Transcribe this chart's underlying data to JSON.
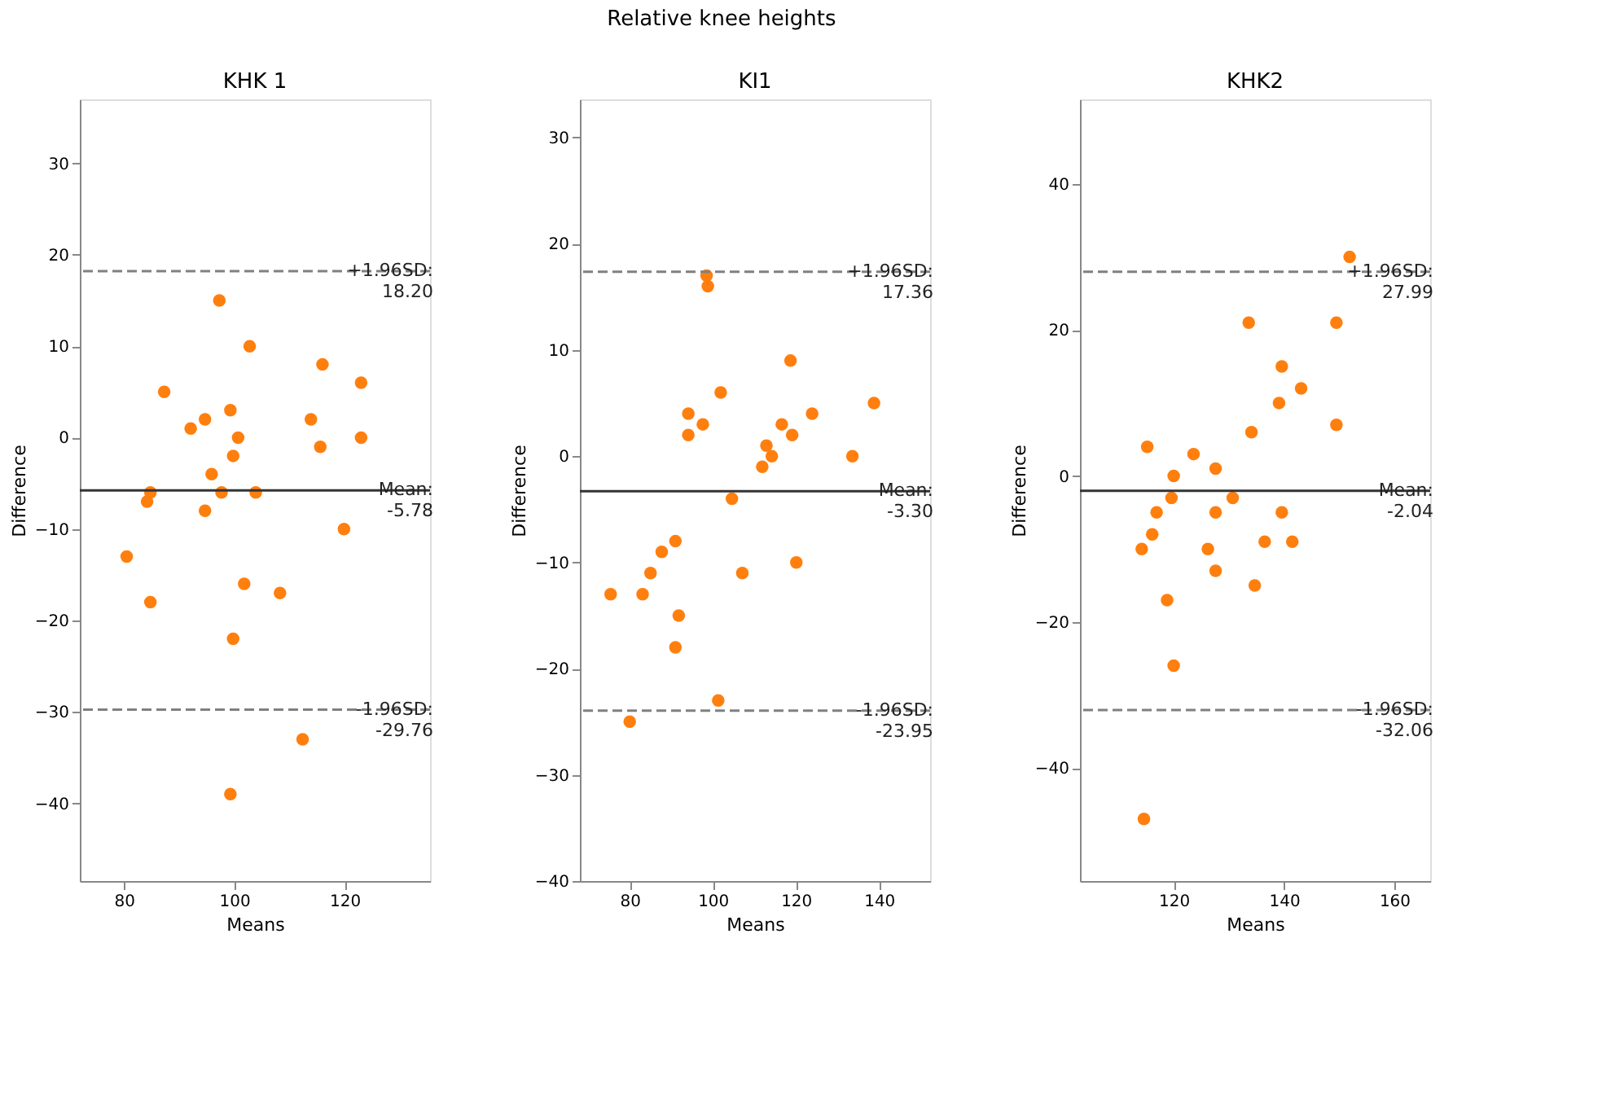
{
  "chart_data": [
    {
      "type": "scatter",
      "title": "KHK 1",
      "xlabel": "Means",
      "ylabel": "Difference",
      "annotations": [
        "Relative knee heights"
      ],
      "color": "#ff7f0e",
      "marker": "circle",
      "grid": false,
      "x": [
        87.3,
        80.5,
        84.2,
        84.8,
        84.8,
        92.1,
        94.7,
        94.7,
        95.9,
        97.3,
        97.7,
        99.3,
        99.8,
        100.7,
        99.8,
        99.3,
        101.8,
        102.8,
        103.9,
        108.3,
        112.4,
        113.9,
        116.0,
        115.6,
        119.9,
        123.0,
        123.0
      ],
      "values": [
        5,
        -13,
        -7,
        -6,
        -18,
        1,
        2,
        -8,
        -4,
        15,
        -6,
        3,
        -2,
        0,
        -22,
        -39,
        -16,
        10,
        -6,
        -17,
        -33,
        2,
        8,
        -1,
        -10,
        6,
        0
      ],
      "xlim": [
        72,
        135.5
      ],
      "ylim": [
        -48.5,
        37
      ],
      "xticks": [
        80,
        100,
        120
      ],
      "yticks": [
        -40,
        -30,
        -20,
        -10,
        0,
        10,
        20,
        30
      ],
      "ref_lines": [
        {
          "axis": "y",
          "value": 18.2,
          "label": "+1.96SD:\n18.20",
          "color": "#808080",
          "line_style": "dashed"
        },
        {
          "axis": "y",
          "value": -5.78,
          "label": "Mean:\n-5.78",
          "color": "#333333",
          "line_style": "solid"
        },
        {
          "axis": "y",
          "value": -29.76,
          "label": "-1.96SD:\n-29.76",
          "color": "#808080",
          "line_style": "dashed"
        }
      ]
    },
    {
      "type": "scatter",
      "title": "KI1",
      "xlabel": "Means",
      "ylabel": "Difference",
      "color": "#ff7f0e",
      "marker": "circle",
      "grid": false,
      "x": [
        75.4,
        80,
        83.1,
        85,
        87.7,
        91,
        91.8,
        91,
        94.1,
        94.1,
        97.6,
        98.5,
        98.8,
        101.3,
        101.9,
        104.6,
        107.1,
        111.9,
        112.9,
        114.2,
        116.6,
        118.7,
        119.1,
        120.1,
        123.9,
        133.6,
        138.8
      ],
      "values": [
        -13,
        -25,
        -13,
        -11,
        -9,
        -8,
        -15,
        -18,
        4,
        2,
        3,
        17,
        16,
        -23,
        6,
        -4,
        -11,
        -1,
        1,
        0,
        3,
        9,
        2,
        -10,
        4,
        0,
        5
      ],
      "xlim": [
        68,
        152.3
      ],
      "ylim": [
        -40,
        33.6
      ],
      "xticks": [
        80,
        100,
        120,
        140
      ],
      "yticks": [
        -40,
        -30,
        -20,
        -10,
        0,
        10,
        20,
        30
      ],
      "ref_lines": [
        {
          "axis": "y",
          "value": 17.36,
          "label": "+1.96SD:\n17.36",
          "color": "#808080",
          "line_style": "dashed"
        },
        {
          "axis": "y",
          "value": -3.3,
          "label": "Mean:\n-3.30",
          "color": "#333333",
          "line_style": "solid"
        },
        {
          "axis": "y",
          "value": -23.95,
          "label": "-1.96SD:\n-23.95",
          "color": "#808080",
          "line_style": "dashed"
        }
      ]
    },
    {
      "type": "scatter",
      "title": "KHK2",
      "xlabel": "Means",
      "ylabel": "Difference",
      "color": "#ff7f0e",
      "marker": "circle",
      "grid": false,
      "x": [
        115.2,
        114.2,
        116.1,
        116.9,
        118.8,
        119.6,
        120,
        120,
        123.6,
        126.2,
        127.6,
        127.6,
        127.6,
        130.7,
        133.6,
        134.1,
        134.7,
        136.5,
        139.1,
        139.6,
        139.6,
        141.5,
        143.1,
        149.5,
        149.5,
        151.9,
        114.6
      ],
      "values": [
        4,
        -10,
        -8,
        -5,
        -17,
        -3,
        0,
        -26,
        3,
        -10,
        1,
        -5,
        -13,
        -3,
        21,
        6,
        -15,
        -9,
        10,
        15,
        -5,
        -9,
        12,
        21,
        7,
        30,
        -47
      ],
      "xlim": [
        103,
        166.5
      ],
      "ylim": [
        -55.5,
        51.6
      ],
      "xticks": [
        120,
        140,
        160
      ],
      "yticks": [
        -40,
        -20,
        0,
        20,
        40
      ],
      "ref_lines": [
        {
          "axis": "y",
          "value": 27.99,
          "label": "+1.96SD:\n27.99",
          "color": "#808080",
          "line_style": "dashed"
        },
        {
          "axis": "y",
          "value": -2.04,
          "label": "Mean:\n-2.04",
          "color": "#333333",
          "line_style": "solid"
        },
        {
          "axis": "y",
          "value": -32.06,
          "label": "-1.96SD:\n-32.06",
          "color": "#808080",
          "line_style": "dashed"
        }
      ]
    }
  ]
}
